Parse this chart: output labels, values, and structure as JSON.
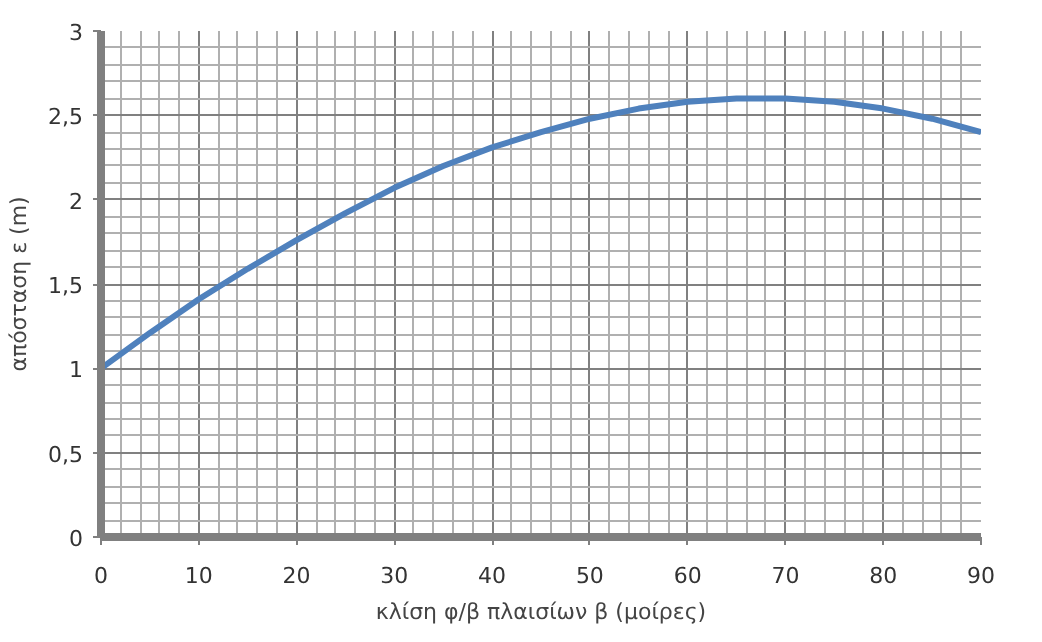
{
  "chart_data": {
    "type": "line",
    "xlabel": "κλίση φ/β πλαισίων β (μοίρες)",
    "ylabel": "απόσταση ε (m)",
    "x": [
      0,
      5,
      10,
      15,
      20,
      25,
      30,
      35,
      40,
      45,
      50,
      55,
      60,
      65,
      67,
      70,
      75,
      80,
      85,
      90
    ],
    "series": [
      {
        "color": "#4f81bd",
        "values": [
          1.0,
          1.21,
          1.41,
          1.59,
          1.76,
          1.92,
          2.07,
          2.2,
          2.31,
          2.4,
          2.48,
          2.54,
          2.58,
          2.6,
          2.6,
          2.6,
          2.58,
          2.54,
          2.48,
          2.4
        ]
      }
    ],
    "xlim": [
      0,
      90
    ],
    "ylim": [
      0,
      3
    ],
    "xticks": [
      0,
      10,
      20,
      30,
      40,
      50,
      60,
      70,
      80,
      90
    ],
    "yticks": [
      0,
      {
        "value": 0.5,
        "label": "0,5"
      },
      1,
      {
        "value": 1.5,
        "label": "1,5"
      },
      2,
      {
        "value": 2.5,
        "label": "2,5"
      },
      3
    ],
    "grid": true,
    "marker": "none",
    "line_style": "solid"
  }
}
